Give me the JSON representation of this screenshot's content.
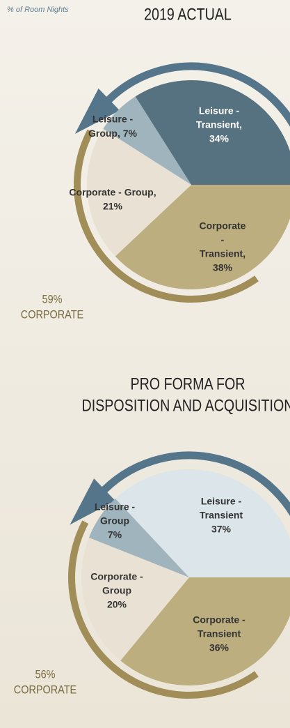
{
  "subtitle": "% of Room Nights",
  "chart_data": [
    {
      "type": "pie",
      "title_lines": [
        "2019 ACTUAL"
      ],
      "categories": [
        "Leisure - Transient",
        "Corporate - Transient",
        "Corporate - Group",
        "Leisure - Group"
      ],
      "category_lines": [
        [
          "Leisure -",
          "Transient,"
        ],
        [
          "Corporate",
          "-",
          "Transient,"
        ],
        [
          "Corporate - Group,"
        ],
        [
          "Leisure -",
          "Group,"
        ]
      ],
      "values": [
        34,
        38,
        21,
        7
      ],
      "value_labels": [
        "34%",
        "38%",
        "21%",
        "7%"
      ],
      "colors": [
        "#56717f",
        "#bcae7f",
        "#e9e1d3",
        "#9fb4bc"
      ],
      "annotation": [
        "59%",
        "CORPORATE"
      ]
    },
    {
      "type": "pie",
      "title_lines": [
        "PRO FORMA FOR",
        "DISPOSITION AND ACQUISITION"
      ],
      "categories": [
        "Leisure - Transient",
        "Corporate - Transient",
        "Corporate - Group",
        "Leisure - Group"
      ],
      "category_lines": [
        [
          "Leisure -",
          "Transient"
        ],
        [
          "Corporate -",
          "Transient"
        ],
        [
          "Corporate -",
          "Group"
        ],
        [
          "Leisure -",
          "Group"
        ]
      ],
      "values": [
        37,
        36,
        20,
        7
      ],
      "value_labels": [
        "37%",
        "36%",
        "20%",
        "7%"
      ],
      "colors": [
        "#dce5ea",
        "#bcae7f",
        "#e9e1d3",
        "#9fb4bc"
      ],
      "annotation": [
        "56%",
        "CORPORATE"
      ]
    }
  ]
}
